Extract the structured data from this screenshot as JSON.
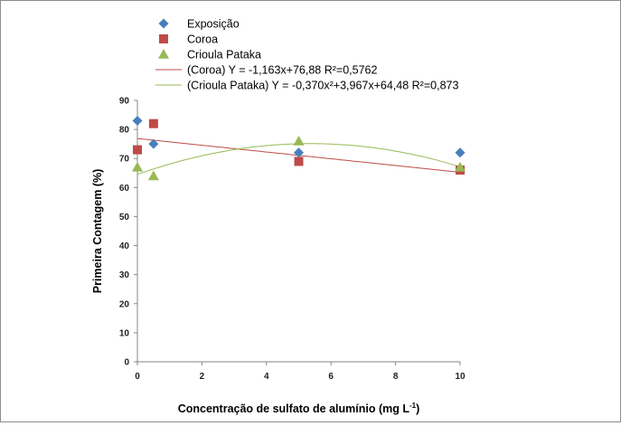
{
  "chart_data": {
    "type": "scatter",
    "xlabel": "Concentração de sulfato de alumínio (mg L",
    "xlabel_sup": "-1",
    "xlabel_end": ")",
    "ylabel": "Primeira Contagem (%)",
    "xlim": [
      0,
      10
    ],
    "ylim": [
      0,
      90
    ],
    "xticks": [
      "0",
      "2",
      "4",
      "6",
      "8",
      "10"
    ],
    "yticks": [
      "0",
      "10",
      "20",
      "30",
      "40",
      "50",
      "60",
      "70",
      "80",
      "90"
    ],
    "grid": false,
    "legend_position": "top",
    "series": [
      {
        "name": "Exposição",
        "marker": "diamond",
        "color": "#4a7ebb",
        "x": [
          0,
          0.5,
          5,
          10
        ],
        "y": [
          83,
          75,
          72,
          72
        ]
      },
      {
        "name": "Coroa",
        "marker": "square",
        "color": "#be4b48",
        "x": [
          0,
          0.5,
          5,
          10
        ],
        "y": [
          73,
          82,
          69,
          66
        ]
      },
      {
        "name": "Crioula Pataka",
        "marker": "triangle",
        "color": "#98b954",
        "x": [
          0,
          0.5,
          5,
          10
        ],
        "y": [
          67,
          64,
          76,
          67
        ]
      }
    ],
    "trendlines": [
      {
        "name": "(Coroa) Y = -1,163x+76,88 R²=0,5762",
        "color": "#be4b48",
        "type": "linear",
        "coef": [
          76.88,
          -1.163
        ]
      },
      {
        "name": "(Crioula Pataka) Y = -0,370x²+3,967x+64,48 R²=0,873",
        "color": "#98b954",
        "type": "quadratic",
        "coef": [
          64.48,
          3.967,
          -0.37
        ]
      }
    ]
  }
}
